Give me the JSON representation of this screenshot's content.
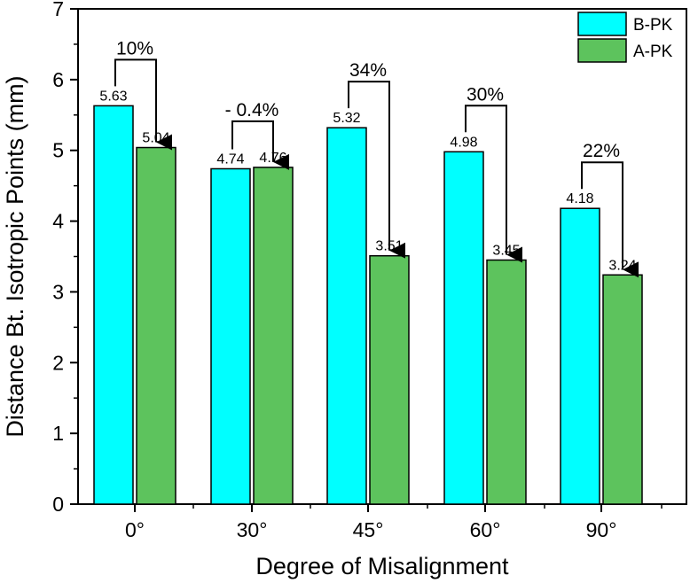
{
  "chart_data": {
    "type": "bar",
    "title": "",
    "xlabel": "Degree of Misalignment",
    "ylabel": "Distance Bt. Isotropic Points (mm)",
    "ylim": [
      0,
      7
    ],
    "yticks": [
      0,
      1,
      2,
      3,
      4,
      5,
      6,
      7
    ],
    "categories": [
      "0°",
      "30°",
      "45°",
      "60°",
      "90°"
    ],
    "series": [
      {
        "name": "B-PK",
        "color": "#00ffff",
        "values": [
          5.63,
          4.74,
          5.32,
          4.98,
          4.18
        ],
        "labels": [
          "5.63",
          "4.74",
          "5.32",
          "4.98",
          "4.18"
        ]
      },
      {
        "name": "A-PK",
        "color": "#5dc35d",
        "values": [
          5.04,
          4.76,
          3.51,
          3.45,
          3.24
        ],
        "labels": [
          "5.04",
          "4.76",
          "3.51",
          "3.45",
          "3.24"
        ]
      }
    ],
    "annotations": [
      "10%",
      "- 0.4%",
      "34%",
      "30%",
      "22%"
    ],
    "legend_position": "top-right",
    "grid": false
  }
}
